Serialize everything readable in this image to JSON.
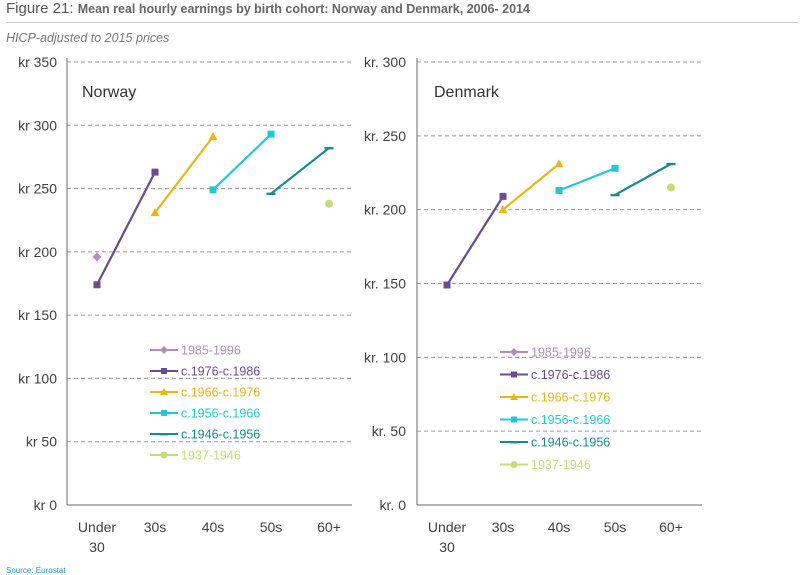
{
  "figure": {
    "number": "Figure 21:",
    "title": "Mean real hourly earnings by birth cohort: Norway and Denmark, 2006- 2014",
    "subtitle": "HICP-adjusted to 2015 prices",
    "source": "Source: Eurostat"
  },
  "chart_data": [
    {
      "type": "line",
      "title": "Norway",
      "categories": [
        "Under 30",
        "30s",
        "40s",
        "50s",
        "60+"
      ],
      "ylim": [
        0,
        350
      ],
      "yticks": [
        0,
        50,
        100,
        150,
        200,
        250,
        300,
        350
      ],
      "ytick_labels": [
        "kr 0",
        "kr 50",
        "kr 100",
        "kr 150",
        "kr 200",
        "kr 250",
        "kr 300",
        "kr 350"
      ],
      "grid": true,
      "legend_position": "center-left",
      "series": [
        {
          "name": "1985-1996",
          "color": "#b58cc0",
          "marker": "diamond",
          "points": [
            {
              "x": 0.0,
              "y": 196
            }
          ]
        },
        {
          "name": "c.1976-c.1986",
          "color": "#6b4c8a",
          "marker": "square",
          "points": [
            {
              "x": 0.0,
              "y": 174
            },
            {
              "x": 1.0,
              "y": 263
            }
          ]
        },
        {
          "name": "c.1966-c.1976",
          "color": "#e8b717",
          "marker": "triangle",
          "points": [
            {
              "x": 1.0,
              "y": 231
            },
            {
              "x": 2.0,
              "y": 291
            }
          ]
        },
        {
          "name": "c.1956-c.1966",
          "color": "#22c9d3",
          "marker": "square",
          "points": [
            {
              "x": 2.0,
              "y": 249
            },
            {
              "x": 3.0,
              "y": 293
            }
          ]
        },
        {
          "name": "c.1946-c.1956",
          "color": "#1a8a8d",
          "marker": "dash",
          "points": [
            {
              "x": 3.0,
              "y": 246
            },
            {
              "x": 4.0,
              "y": 282
            }
          ]
        },
        {
          "name": "1937-1946",
          "color": "#c5dd78",
          "marker": "circle",
          "points": [
            {
              "x": 4.0,
              "y": 238
            }
          ]
        }
      ]
    },
    {
      "type": "line",
      "title": "Denmark",
      "categories": [
        "Under 30",
        "30s",
        "40s",
        "50s",
        "60+"
      ],
      "ylim": [
        0,
        300
      ],
      "yticks": [
        0,
        50,
        100,
        150,
        200,
        250,
        300
      ],
      "ytick_labels": [
        "kr. 0",
        "kr. 50",
        "kr. 100",
        "kr. 150",
        "kr. 200",
        "kr. 250",
        "kr. 300"
      ],
      "grid": true,
      "legend_position": "center",
      "series": [
        {
          "name": "1985-1996",
          "color": "#b58cc0",
          "marker": "diamond",
          "points": []
        },
        {
          "name": "c.1976-c.1986",
          "color": "#6b4c8a",
          "marker": "square",
          "points": [
            {
              "x": 0.0,
              "y": 149
            },
            {
              "x": 1.0,
              "y": 209
            }
          ]
        },
        {
          "name": "c.1966-c.1976",
          "color": "#e8b717",
          "marker": "triangle",
          "points": [
            {
              "x": 1.0,
              "y": 200
            },
            {
              "x": 2.0,
              "y": 231
            }
          ]
        },
        {
          "name": "c.1956-c.1966",
          "color": "#22c9d3",
          "marker": "square",
          "points": [
            {
              "x": 2.0,
              "y": 213
            },
            {
              "x": 3.0,
              "y": 228
            }
          ]
        },
        {
          "name": "c.1946-c.1956",
          "color": "#1a8a8d",
          "marker": "dash",
          "points": [
            {
              "x": 3.0,
              "y": 210
            },
            {
              "x": 4.0,
              "y": 231
            }
          ]
        },
        {
          "name": "1937-1946",
          "color": "#c5dd78",
          "marker": "circle",
          "points": [
            {
              "x": 4.0,
              "y": 215
            }
          ]
        }
      ]
    }
  ]
}
